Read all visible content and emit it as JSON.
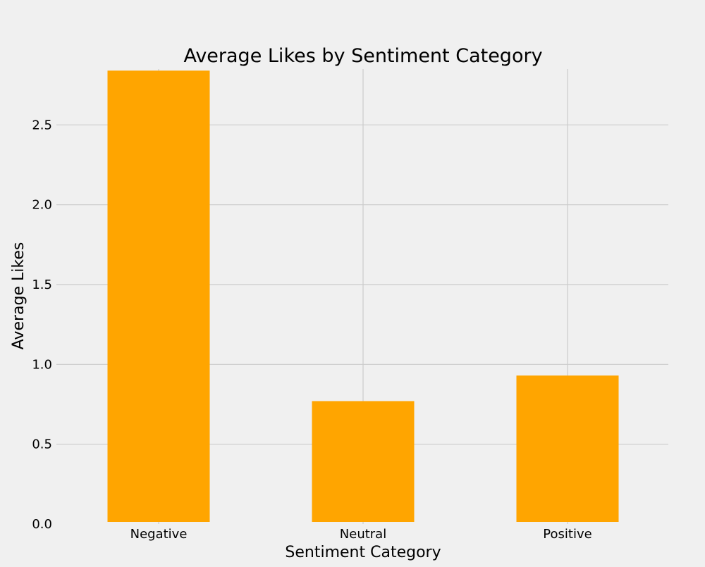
{
  "chart_data": {
    "type": "bar",
    "title": "Average Likes by Sentiment Category",
    "xlabel": "Sentiment Category",
    "ylabel": "Average Likes",
    "categories": [
      "Negative",
      "Neutral",
      "Positive"
    ],
    "values": [
      2.84,
      0.77,
      0.93
    ],
    "ylim": [
      0,
      2.85
    ],
    "yticks": [
      0.0,
      0.5,
      1.0,
      1.5,
      2.0,
      2.5
    ],
    "ytick_labels": [
      "0.0",
      "0.5",
      "1.0",
      "1.5",
      "2.0",
      "2.5"
    ],
    "grid": true,
    "legend": false,
    "colors": {
      "bar": "#ffa500",
      "background": "#f0f0f0",
      "grid": "#cbcbcb"
    }
  }
}
